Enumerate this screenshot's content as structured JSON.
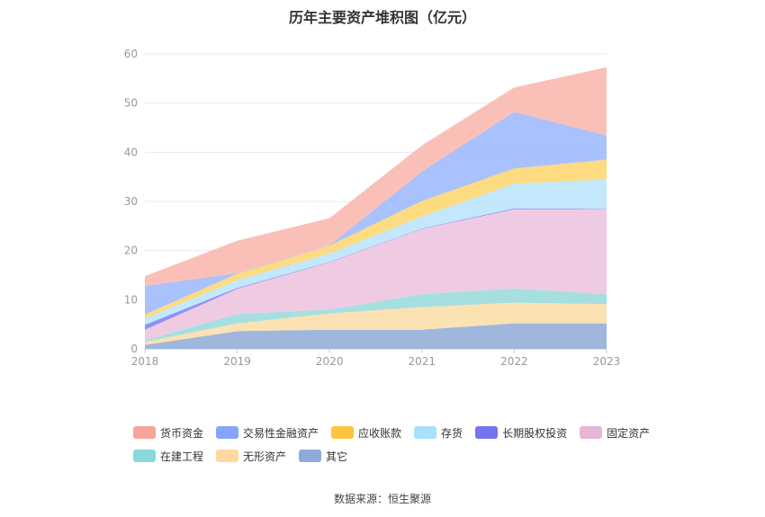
{
  "chart_data": {
    "type": "area",
    "stacked": true,
    "title": "历年主要资产堆积图（亿元）",
    "categories": [
      "2018",
      "2019",
      "2020",
      "2021",
      "2022",
      "2023"
    ],
    "ylim": [
      0,
      60
    ],
    "yticks": [
      0,
      10,
      20,
      30,
      40,
      50,
      60
    ],
    "grid": true,
    "legend_position": "bottom",
    "series": [
      {
        "name": "其它",
        "color": "#8eaad6",
        "values": [
          0.8,
          3.6,
          3.9,
          3.9,
          5.2,
          5.2
        ]
      },
      {
        "name": "无形资产",
        "color": "#fcdca6",
        "values": [
          0.6,
          1.6,
          3.3,
          4.6,
          4.2,
          3.9
        ]
      },
      {
        "name": "在建工程",
        "color": "#96d9db",
        "values": [
          0.3,
          1.9,
          0.8,
          2.6,
          2.9,
          2.0
        ]
      },
      {
        "name": "固定资产",
        "color": "#ecc2de",
        "values": [
          2.2,
          5.1,
          9.6,
          13.3,
          16.1,
          17.3
        ]
      },
      {
        "name": "长期股权投资",
        "color": "#7b7ff2",
        "values": [
          1.0,
          0.2,
          0.1,
          0.1,
          0.2,
          0.1
        ]
      },
      {
        "name": "存货",
        "color": "#b8e4fa",
        "values": [
          1.3,
          1.6,
          1.7,
          2.4,
          5.0,
          6.0
        ]
      },
      {
        "name": "应收账款",
        "color": "#fdd56b",
        "values": [
          0.8,
          1.3,
          1.6,
          3.2,
          3.1,
          4.0
        ]
      },
      {
        "name": "交易性金融资产",
        "color": "#9ab6fb",
        "values": [
          5.8,
          0.1,
          0.1,
          6.0,
          11.5,
          4.9
        ]
      },
      {
        "name": "货币资金",
        "color": "#f9b5ab",
        "values": [
          2.0,
          6.6,
          5.5,
          5.3,
          5.0,
          13.9
        ]
      }
    ],
    "legend_order": [
      "货币资金",
      "交易性金融资产",
      "应收账款",
      "存货",
      "长期股权投资",
      "固定资产",
      "在建工程",
      "无形资产",
      "其它"
    ],
    "legend_colors": {
      "货币资金": "#f7a59b",
      "交易性金融资产": "#85a5fa",
      "应收账款": "#fcc43f",
      "存货": "#a9e0fb",
      "长期股权投资": "#7474ee",
      "固定资产": "#e6b5d8",
      "在建工程": "#8ad8da",
      "无形资产": "#fdd9a0",
      "其它": "#8eaad6"
    }
  },
  "footer": {
    "source": "数据来源：恒生聚源"
  }
}
